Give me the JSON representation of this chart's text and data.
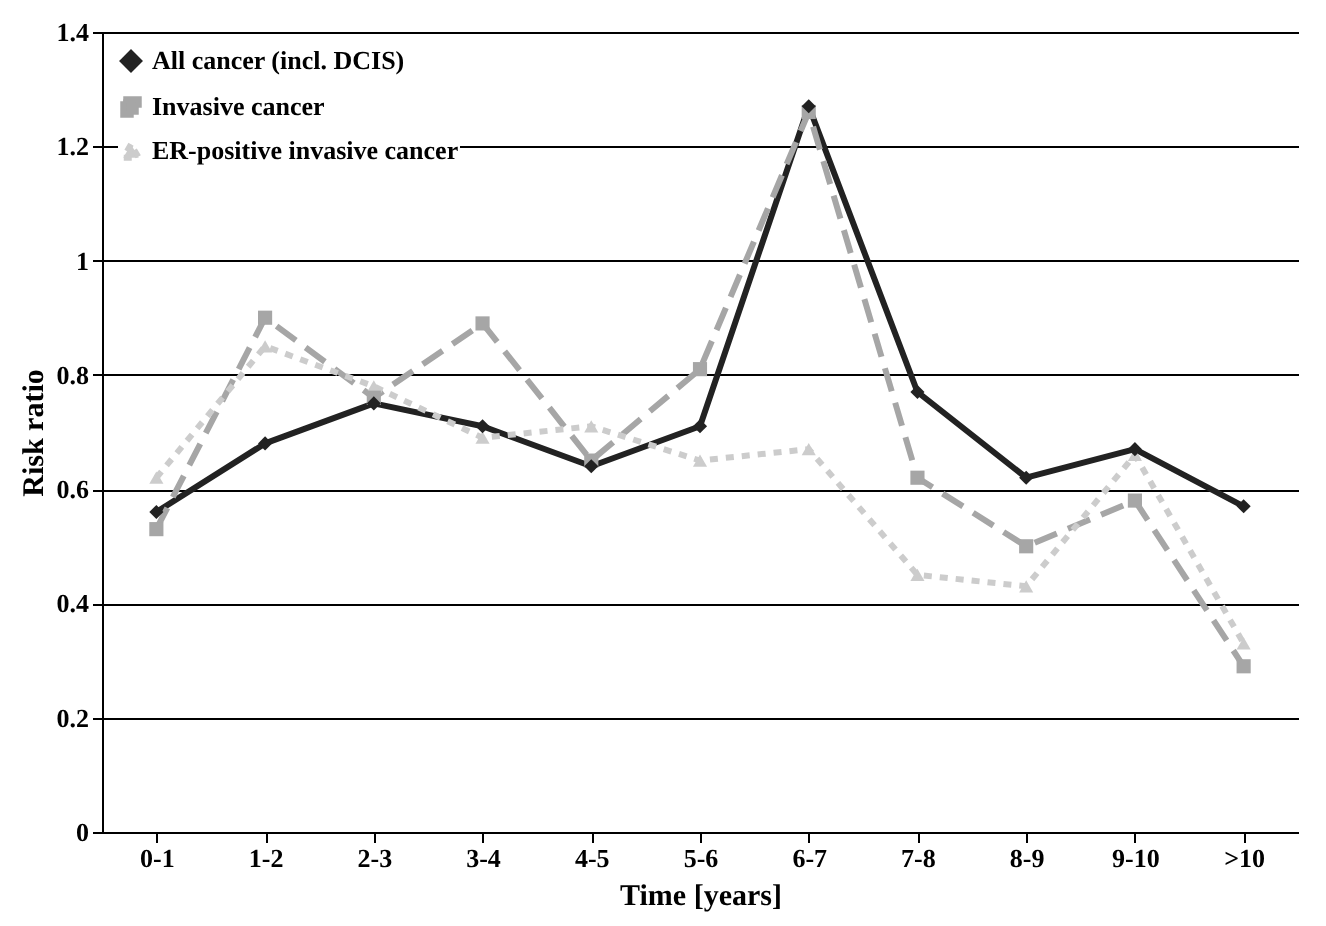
{
  "chart_data": {
    "type": "line",
    "xlabel": "Time [years]",
    "ylabel": "Risk ratio",
    "categories": [
      "0-1",
      "1-2",
      "2-3",
      "3-4",
      "4-5",
      "5-6",
      "6-7",
      "7-8",
      "8-9",
      "9-10",
      ">10"
    ],
    "series": [
      {
        "name": "All cancer (incl. DCIS)",
        "color": "#222222",
        "marker": "diamond",
        "line_style": "solid",
        "values": [
          0.56,
          0.68,
          0.75,
          0.71,
          0.64,
          0.71,
          1.27,
          0.77,
          0.62,
          0.67,
          0.57
        ]
      },
      {
        "name": "Invasive cancer",
        "color": "#a6a6a6",
        "marker": "square",
        "line_style": "dashed",
        "values": [
          0.53,
          0.9,
          0.76,
          0.89,
          0.65,
          0.81,
          1.26,
          0.62,
          0.5,
          0.58,
          0.29
        ]
      },
      {
        "name": "ER-positive invasive cancer",
        "color": "#cccccc",
        "marker": "triangle",
        "line_style": "dotted",
        "values": [
          0.62,
          0.85,
          0.78,
          0.69,
          0.71,
          0.65,
          0.67,
          0.45,
          0.43,
          0.66,
          0.33
        ]
      }
    ],
    "ylim": [
      0,
      1.4
    ],
    "yticks": [
      0,
      0.2,
      0.4,
      0.6,
      0.8,
      1,
      1.2,
      1.4
    ],
    "grid": "y",
    "legend": "top left"
  }
}
